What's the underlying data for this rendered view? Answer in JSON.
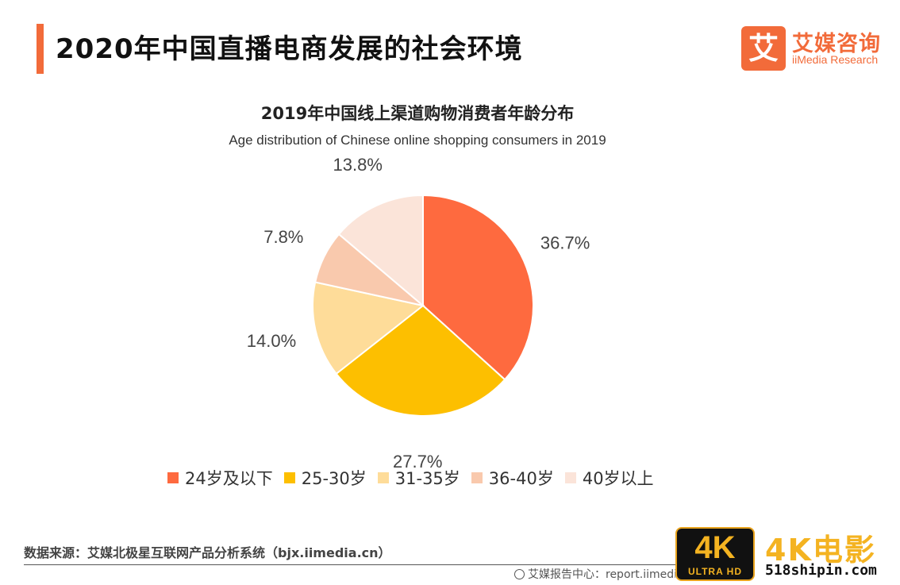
{
  "page": {
    "title": "2020年中国直播电商发展的社会环境"
  },
  "logo": {
    "mark": "艾",
    "name_cn": "艾媒咨询",
    "name_en": "iiMedia Research"
  },
  "chart_data": {
    "type": "pie",
    "title": "2019年中国线上渠道购物消费者年龄分布",
    "subtitle": "Age distribution of Chinese online shopping consumers in 2019",
    "categories": [
      "24岁及以下",
      "25-30岁",
      "31-35岁",
      "36-40岁",
      "40岁以上"
    ],
    "values": [
      36.7,
      27.7,
      14.0,
      7.8,
      13.8
    ],
    "labels": [
      "36.7%",
      "27.7%",
      "14.0%",
      "7.8%",
      "13.8%"
    ],
    "colors": [
      "#fe6a3f",
      "#fdbf00",
      "#fedc99",
      "#f9c9ad",
      "#fbe4d9"
    ],
    "start": "12 o'clock",
    "direction": "clockwise",
    "legend_position": "bottom"
  },
  "source": "数据来源：艾媒北极星互联网产品分析系统（bjx.iimedia.cn）",
  "footer": "艾媒报告中心：report.iimedia.cn",
  "watermark": {
    "badge_main": "4K",
    "badge_sub": "ULTRA HD",
    "text_cn": "4K电影",
    "url": "518shipin.com"
  }
}
